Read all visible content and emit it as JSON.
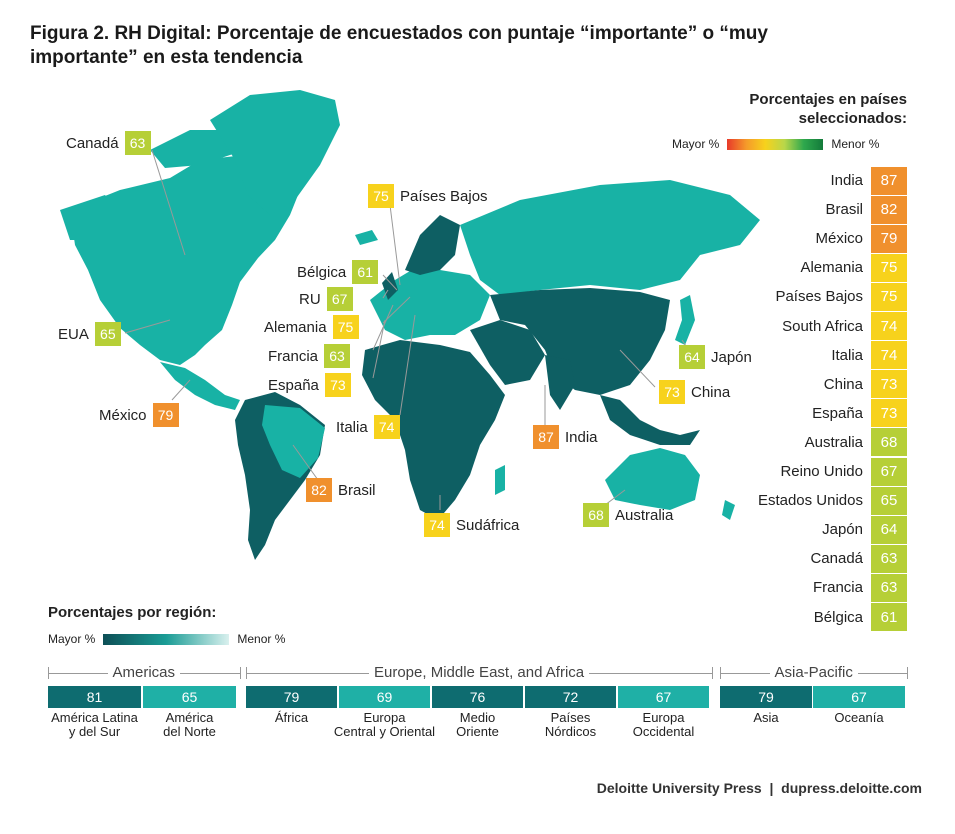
{
  "title": "Figura 2. RH Digital: Porcentaje de encuestados con puntaje “importante” o “muy importante” en esta tendencia",
  "colors": {
    "map_teal": "#18b2a5",
    "map_dark": "#0e5f63",
    "orange": "#f0902d",
    "yellow": "#f7d21c",
    "lime": "#b6cf37",
    "region_dark": "#0e6c70",
    "region_light": "#1fb0a6"
  },
  "map_callouts": [
    {
      "name": "Canadá",
      "value": "63",
      "color": "#b6cf37"
    },
    {
      "name": "Países Bajos",
      "value": "75",
      "color": "#f7d21c"
    },
    {
      "name": "Bélgica",
      "value": "61",
      "color": "#b6cf37"
    },
    {
      "name": "RU",
      "value": "67",
      "color": "#b6cf37"
    },
    {
      "name": "Alemania",
      "value": "75",
      "color": "#f7d21c"
    },
    {
      "name": "Francia",
      "value": "63",
      "color": "#b6cf37"
    },
    {
      "name": "España",
      "value": "73",
      "color": "#f7d21c"
    },
    {
      "name": "EUA",
      "value": "65",
      "color": "#b6cf37"
    },
    {
      "name": "México",
      "value": "79",
      "color": "#f0902d"
    },
    {
      "name": "Italia",
      "value": "74",
      "color": "#f7d21c"
    },
    {
      "name": "India",
      "value": "87",
      "color": "#f0902d"
    },
    {
      "name": "Brasil",
      "value": "82",
      "color": "#f0902d"
    },
    {
      "name": "Sudáfrica",
      "value": "74",
      "color": "#f7d21c"
    },
    {
      "name": "Australia",
      "value": "68",
      "color": "#b6cf37"
    },
    {
      "name": "Japón",
      "value": "64",
      "color": "#b6cf37"
    },
    {
      "name": "China",
      "value": "73",
      "color": "#f7d21c"
    }
  ],
  "country_legend": {
    "title": "Porcentajes en países seleccionados:",
    "high_label": "Mayor %",
    "low_label": "Menor %"
  },
  "region_legend": {
    "title": "Porcentajes por región:",
    "high_label": "Mayor %",
    "low_label": "Menor %"
  },
  "chart_data": {
    "type": "table",
    "title": "Figura 2. RH Digital: Porcentaje de encuestados con puntaje “importante” o “muy importante” en esta tendencia",
    "countries": [
      {
        "name": "India",
        "value": 87,
        "color": "#f0902d"
      },
      {
        "name": "Brasil",
        "value": 82,
        "color": "#f0902d"
      },
      {
        "name": "México",
        "value": 79,
        "color": "#f0902d"
      },
      {
        "name": "Alemania",
        "value": 75,
        "color": "#f7d21c"
      },
      {
        "name": "Países Bajos",
        "value": 75,
        "color": "#f7d21c"
      },
      {
        "name": "South Africa",
        "value": 74,
        "color": "#f7d21c"
      },
      {
        "name": "Italia",
        "value": 74,
        "color": "#f7d21c"
      },
      {
        "name": "China",
        "value": 73,
        "color": "#f7d21c"
      },
      {
        "name": "España",
        "value": 73,
        "color": "#f7d21c"
      },
      {
        "name": "Australia",
        "value": 68,
        "color": "#b6cf37"
      },
      {
        "name": "Reino Unido",
        "value": 67,
        "color": "#b6cf37"
      },
      {
        "name": "Estados Unidos",
        "value": 65,
        "color": "#b6cf37"
      },
      {
        "name": "Japón",
        "value": 64,
        "color": "#b6cf37"
      },
      {
        "name": "Canadá",
        "value": 63,
        "color": "#b6cf37"
      },
      {
        "name": "Francia",
        "value": 63,
        "color": "#b6cf37"
      },
      {
        "name": "Bélgica",
        "value": 61,
        "color": "#b6cf37"
      }
    ],
    "region_groups": [
      {
        "name": "Americas",
        "regions": [
          {
            "name": "América Latina y del Sur",
            "line1": "América Latina",
            "line2": "y del Sur",
            "value": 81,
            "color": "#0e6c70"
          },
          {
            "name": "América del Norte",
            "line1": "América",
            "line2": "del Norte",
            "value": 65,
            "color": "#1fb0a6"
          }
        ]
      },
      {
        "name": "Europe, Middle East, and Africa",
        "regions": [
          {
            "name": "África",
            "line1": "África",
            "line2": "",
            "value": 79,
            "color": "#0e6c70"
          },
          {
            "name": "Europa Central y Oriental",
            "line1": "Europa",
            "line2": "Central y Oriental",
            "value": 69,
            "color": "#1fb0a6"
          },
          {
            "name": "Medio Oriente",
            "line1": "Medio",
            "line2": "Oriente",
            "value": 76,
            "color": "#0e6c70"
          },
          {
            "name": "Países Nórdicos",
            "line1": "Países",
            "line2": "Nórdicos",
            "value": 72,
            "color": "#0e6c70"
          },
          {
            "name": "Europa Occidental",
            "line1": "Europa",
            "line2": "Occidental",
            "value": 67,
            "color": "#1fb0a6"
          }
        ]
      },
      {
        "name": "Asia-Pacific",
        "regions": [
          {
            "name": "Asia",
            "line1": "Asia",
            "line2": "",
            "value": 79,
            "color": "#0e6c70"
          },
          {
            "name": "Oceanía",
            "line1": "Oceanía",
            "line2": "",
            "value": 67,
            "color": "#1fb0a6"
          }
        ]
      }
    ]
  },
  "footer": "Deloitte University Press  |  dupress.deloitte.com"
}
